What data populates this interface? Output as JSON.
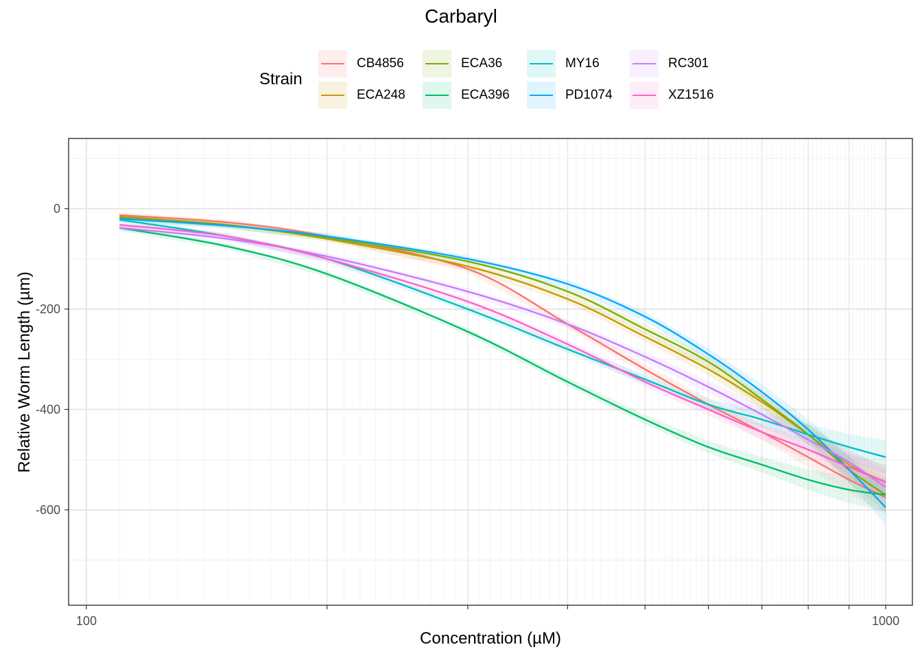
{
  "chart_data": {
    "type": "line",
    "title": "Carbaryl",
    "xlabel": "Concentration (µM)",
    "ylabel": "Relative Worm Length (µm)",
    "xscale": "log",
    "xlim": [
      95,
      1080
    ],
    "ylim": [
      -790,
      140
    ],
    "x_ticks": [
      {
        "value": 100,
        "label": "100"
      },
      {
        "value": 1000,
        "label": "1000"
      }
    ],
    "y_ticks": [
      {
        "value": 0,
        "label": "0"
      },
      {
        "value": -200,
        "label": "-200"
      },
      {
        "value": -400,
        "label": "-400"
      },
      {
        "value": -600,
        "label": "-600"
      }
    ],
    "grid": true,
    "confidence_bands": true,
    "legend": {
      "title": "Strain",
      "placement": "top"
    },
    "x": [
      110,
      150,
      200,
      300,
      400,
      500,
      600,
      700,
      800,
      900,
      1000
    ],
    "series": [
      {
        "name": "CB4856",
        "color": "#F8766D",
        "values": [
          -13,
          -27,
          -55,
          -120,
          -230,
          -320,
          -390,
          -445,
          -495,
          -540,
          -575
        ]
      },
      {
        "name": "ECA248",
        "color": "#C49A00",
        "values": [
          -16,
          -32,
          -60,
          -115,
          -180,
          -255,
          -320,
          -385,
          -450,
          -510,
          -545
        ]
      },
      {
        "name": "ECA36",
        "color": "#7CAE00",
        "values": [
          -18,
          -33,
          -58,
          -105,
          -165,
          -240,
          -305,
          -380,
          -450,
          -520,
          -570
        ]
      },
      {
        "name": "ECA396",
        "color": "#00BE67",
        "values": [
          -38,
          -75,
          -130,
          -245,
          -345,
          -420,
          -475,
          -510,
          -540,
          -560,
          -570
        ]
      },
      {
        "name": "MY16",
        "color": "#00BFC4",
        "values": [
          -22,
          -55,
          -100,
          -200,
          -280,
          -340,
          -390,
          -420,
          -450,
          -475,
          -495
        ]
      },
      {
        "name": "PD1074",
        "color": "#00A9FF",
        "values": [
          -20,
          -34,
          -55,
          -100,
          -150,
          -215,
          -290,
          -365,
          -440,
          -520,
          -595
        ]
      },
      {
        "name": "RC301",
        "color": "#C77CFF",
        "values": [
          -38,
          -60,
          -95,
          -165,
          -230,
          -295,
          -355,
          -410,
          -460,
          -505,
          -555
        ]
      },
      {
        "name": "XZ1516",
        "color": "#FF61CC",
        "values": [
          -32,
          -55,
          -100,
          -185,
          -270,
          -345,
          -400,
          -445,
          -480,
          -515,
          -545
        ]
      }
    ]
  }
}
